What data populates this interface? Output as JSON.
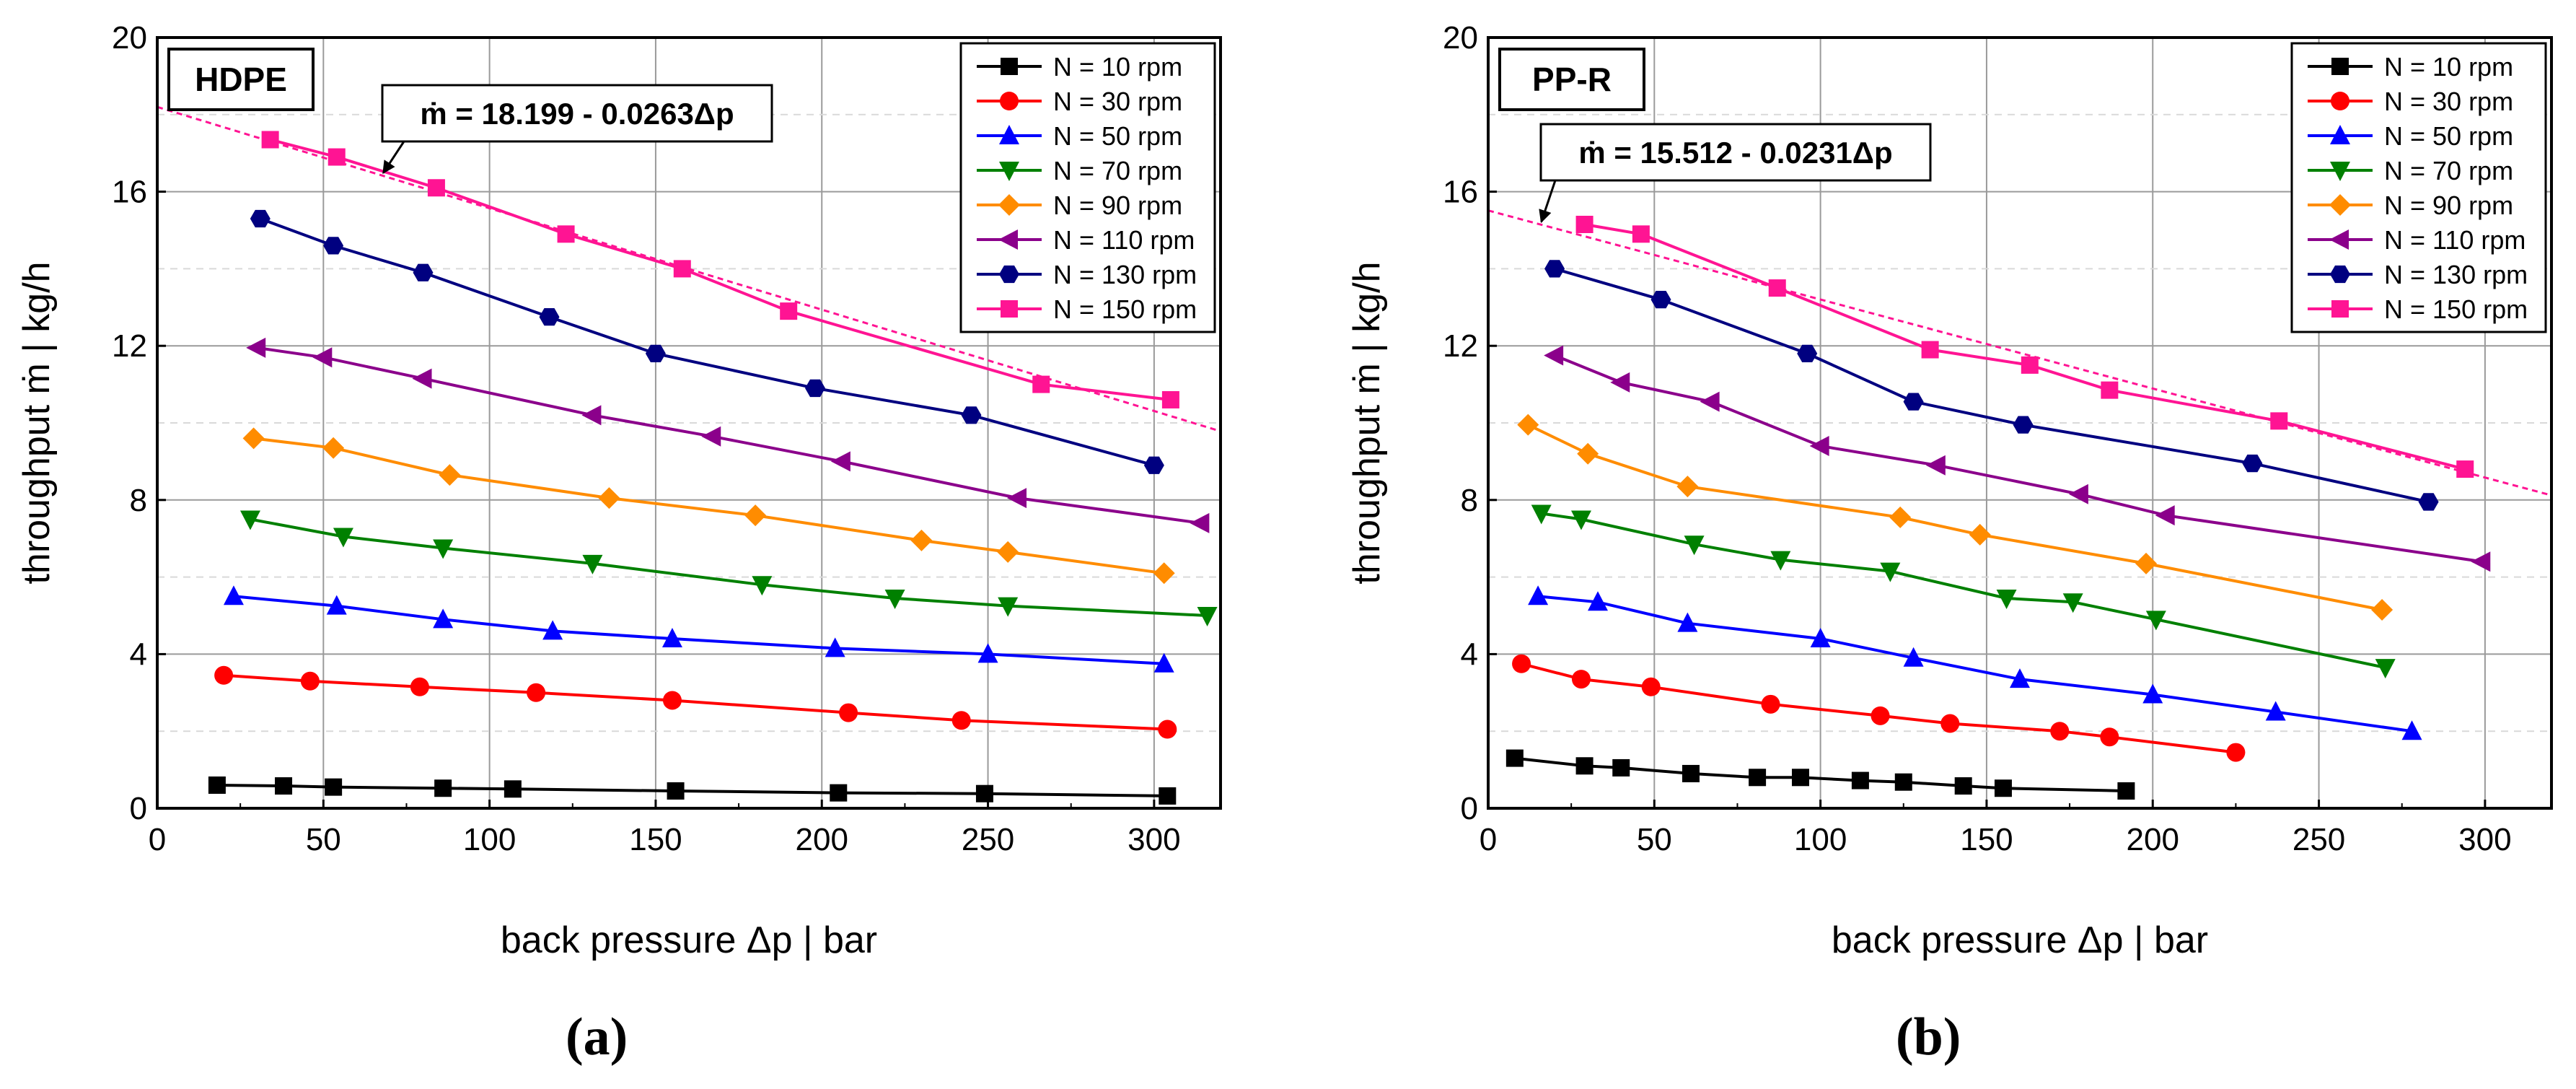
{
  "chart_data": [
    {
      "type": "line",
      "panel_label": "(a)",
      "material_label": "HDPE",
      "xlabel": "back pressure Δp  |  bar",
      "ylabel": "throughput ṁ  |  kg/h",
      "xlim": [
        0,
        320
      ],
      "ylim": [
        0,
        20
      ],
      "xticks": [
        "0",
        "50",
        "100",
        "150",
        "200",
        "250",
        "300"
      ],
      "yticks": [
        "0",
        "4",
        "8",
        "12",
        "16",
        "20"
      ],
      "grid": true,
      "legend_position": "top-right",
      "fit": {
        "label": "ṁ = 18.199 - 0.0263Δp",
        "intercept": 18.199,
        "slope": -0.0263,
        "color": "#ff1493"
      },
      "series": [
        {
          "name": "N = 10 rpm",
          "color": "#000000",
          "marker": "square",
          "x": [
            18,
            38,
            53,
            86,
            107,
            156,
            205,
            249,
            304
          ],
          "y": [
            0.6,
            0.58,
            0.55,
            0.52,
            0.5,
            0.45,
            0.4,
            0.38,
            0.32
          ]
        },
        {
          "name": "N = 30 rpm",
          "color": "#ff0000",
          "marker": "circle",
          "x": [
            20,
            46,
            79,
            114,
            155,
            208,
            242,
            304
          ],
          "y": [
            3.45,
            3.3,
            3.15,
            3.0,
            2.8,
            2.48,
            2.28,
            2.05
          ]
        },
        {
          "name": "N = 50 rpm",
          "color": "#0000ff",
          "marker": "triangle-up",
          "x": [
            23,
            54,
            86,
            119,
            155,
            204,
            250,
            303
          ],
          "y": [
            5.5,
            5.25,
            4.9,
            4.6,
            4.4,
            4.15,
            4.0,
            3.75
          ]
        },
        {
          "name": "N = 70 rpm",
          "color": "#008000",
          "marker": "triangle-down",
          "x": [
            28,
            56,
            86,
            131,
            182,
            222,
            256,
            316
          ],
          "y": [
            7.5,
            7.05,
            6.75,
            6.35,
            5.8,
            5.45,
            5.25,
            5.0
          ]
        },
        {
          "name": "N = 90 rpm",
          "color": "#ff8c00",
          "marker": "diamond",
          "x": [
            29,
            53,
            88,
            136,
            180,
            230,
            256,
            303
          ],
          "y": [
            9.6,
            9.35,
            8.65,
            8.05,
            7.6,
            6.95,
            6.65,
            6.1
          ]
        },
        {
          "name": "N = 110 rpm",
          "color": "#8b008b",
          "marker": "triangle-left",
          "x": [
            30,
            50,
            80,
            131,
            167,
            206,
            259,
            314
          ],
          "y": [
            11.95,
            11.7,
            11.15,
            10.2,
            9.65,
            9.0,
            8.05,
            7.4
          ]
        },
        {
          "name": "N = 130 rpm",
          "color": "#000080",
          "marker": "hexagon",
          "x": [
            31,
            53,
            80,
            118,
            150,
            198,
            245,
            300
          ],
          "y": [
            15.3,
            14.6,
            13.9,
            12.75,
            11.8,
            10.9,
            10.2,
            8.9
          ]
        },
        {
          "name": "N = 150 rpm",
          "color": "#ff1493",
          "marker": "square",
          "x": [
            34,
            54,
            84,
            123,
            158,
            190,
            266,
            305
          ],
          "y": [
            17.35,
            16.9,
            16.1,
            14.9,
            14.0,
            12.9,
            11.0,
            10.6
          ]
        }
      ]
    },
    {
      "type": "line",
      "panel_label": "(b)",
      "material_label": "PP-R",
      "xlabel": "back pressure Δp  |  bar",
      "ylabel": "throughput ṁ  |  kg/h",
      "xlim": [
        0,
        320
      ],
      "ylim": [
        0,
        20
      ],
      "xticks": [
        "0",
        "50",
        "100",
        "150",
        "200",
        "250",
        "300"
      ],
      "yticks": [
        "0",
        "4",
        "8",
        "12",
        "16",
        "20"
      ],
      "grid": true,
      "legend_position": "top-right",
      "fit": {
        "label": "ṁ = 15.512 - 0.0231Δp",
        "intercept": 15.512,
        "slope": -0.0231,
        "color": "#ff1493"
      },
      "series": [
        {
          "name": "N = 10 rpm",
          "color": "#000000",
          "marker": "square",
          "x": [
            8,
            29,
            40,
            61,
            81,
            94,
            112,
            125,
            143,
            155,
            192
          ],
          "y": [
            1.3,
            1.1,
            1.05,
            0.9,
            0.8,
            0.8,
            0.72,
            0.68,
            0.58,
            0.52,
            0.45
          ]
        },
        {
          "name": "N = 30 rpm",
          "color": "#ff0000",
          "marker": "circle",
          "x": [
            10,
            28,
            49,
            85,
            118,
            139,
            172,
            187,
            225
          ],
          "y": [
            3.75,
            3.35,
            3.15,
            2.7,
            2.4,
            2.2,
            2.0,
            1.85,
            1.45
          ]
        },
        {
          "name": "N = 50 rpm",
          "color": "#0000ff",
          "marker": "triangle-up",
          "x": [
            15,
            33,
            60,
            100,
            128,
            160,
            200,
            237,
            278
          ],
          "y": [
            5.5,
            5.35,
            4.8,
            4.4,
            3.9,
            3.35,
            2.95,
            2.5,
            2.0
          ]
        },
        {
          "name": "N = 70 rpm",
          "color": "#008000",
          "marker": "triangle-down",
          "x": [
            16,
            28,
            62,
            88,
            121,
            156,
            176,
            201,
            270
          ],
          "y": [
            7.65,
            7.5,
            6.85,
            6.45,
            6.15,
            5.45,
            5.35,
            4.9,
            3.65
          ]
        },
        {
          "name": "N = 90 rpm",
          "color": "#ff8c00",
          "marker": "diamond",
          "x": [
            12,
            30,
            60,
            124,
            148,
            198,
            269
          ],
          "y": [
            9.95,
            9.2,
            8.35,
            7.55,
            7.1,
            6.35,
            5.15
          ]
        },
        {
          "name": "N = 110 rpm",
          "color": "#8b008b",
          "marker": "triangle-left",
          "x": [
            20,
            40,
            67,
            100,
            135,
            178,
            204,
            299
          ],
          "y": [
            11.75,
            11.05,
            10.55,
            9.4,
            8.9,
            8.15,
            7.6,
            6.4
          ]
        },
        {
          "name": "N = 130 rpm",
          "color": "#000080",
          "marker": "hexagon",
          "x": [
            20,
            52,
            96,
            128,
            161,
            230,
            283
          ],
          "y": [
            14.0,
            13.2,
            11.8,
            10.55,
            9.95,
            8.95,
            7.95
          ]
        },
        {
          "name": "N = 150 rpm",
          "color": "#ff1493",
          "marker": "square",
          "x": [
            29,
            46,
            87,
            133,
            163,
            187,
            238,
            294
          ],
          "y": [
            15.15,
            14.9,
            13.5,
            11.9,
            11.5,
            10.85,
            10.05,
            8.8
          ]
        }
      ]
    }
  ]
}
